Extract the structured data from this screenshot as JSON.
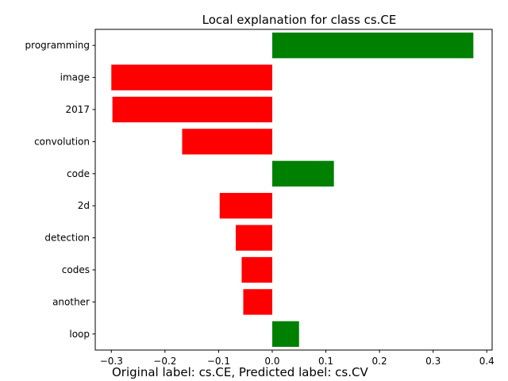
{
  "chart_data": {
    "type": "bar",
    "orientation": "horizontal",
    "title": "Local explanation for class cs.CE",
    "categories": [
      "programming",
      "image",
      "2017",
      "convolution",
      "code",
      "2d",
      "detection",
      "codes",
      "another",
      "loop"
    ],
    "values": [
      0.375,
      -0.3,
      -0.298,
      -0.168,
      0.115,
      -0.098,
      -0.068,
      -0.057,
      -0.054,
      0.05
    ],
    "positive_color": "#008000",
    "negative_color": "#ff0000",
    "xlim": [
      -0.33,
      0.41
    ],
    "xticks": [
      -0.3,
      -0.2,
      -0.1,
      0.0,
      0.1,
      0.2,
      0.3,
      0.4
    ],
    "xtick_labels": [
      "−0.3",
      "−0.2",
      "−0.1",
      "0.0",
      "0.1",
      "0.2",
      "0.3",
      "0.4"
    ],
    "grid": false,
    "legend": "none"
  },
  "caption": "Original label: cs.CE, Predicted label: cs.CV"
}
